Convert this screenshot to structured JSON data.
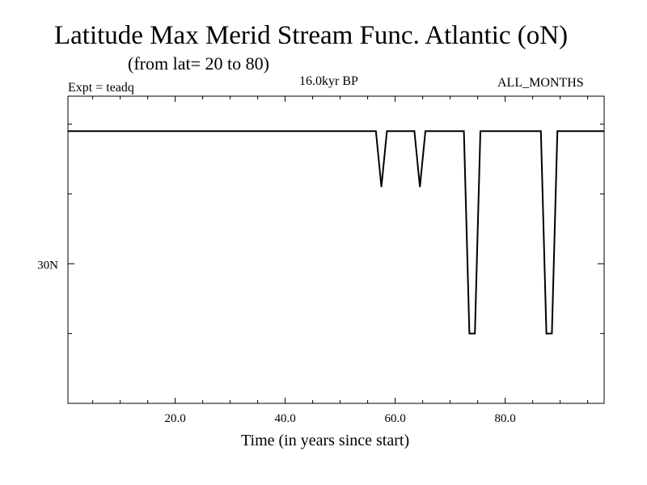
{
  "chart_data": {
    "type": "line",
    "title": "Latitude Max Merid Stream Func. Atlantic (oN)",
    "subtitle": "(from lat= 20 to 80)",
    "experiment": "Expt = teadq",
    "period": "16.0kyr BP",
    "months": "ALL_MONTHS",
    "xlabel": "Time (in years since start)",
    "ylabel": "",
    "xlim": [
      0.5,
      98
    ],
    "ylim": [
      20,
      42
    ],
    "x_ticks": [
      20,
      40,
      60,
      80
    ],
    "x_tick_labels": [
      "20.0",
      "40.0",
      "60.0",
      "80.0"
    ],
    "y_ticks": [
      30
    ],
    "y_tick_labels": [
      "30N"
    ],
    "grid": false,
    "series": [
      {
        "name": "Latitude of max meridional stream function",
        "x": [
          0.5,
          56.5,
          57.5,
          58.5,
          63.5,
          64.5,
          65.5,
          72.5,
          73.5,
          74.5,
          75.5,
          86.5,
          87.5,
          88.5,
          89.5,
          98
        ],
        "y": [
          39.5,
          39.5,
          35.5,
          39.5,
          39.5,
          35.5,
          39.5,
          39.5,
          25.0,
          25.0,
          39.5,
          39.5,
          25.0,
          25.0,
          39.5,
          39.5
        ]
      }
    ]
  }
}
